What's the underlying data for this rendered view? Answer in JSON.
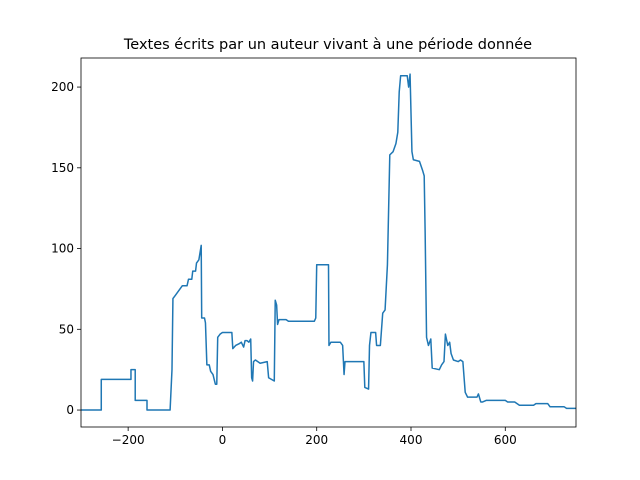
{
  "chart_data": {
    "type": "line",
    "title": "Textes écrits par un auteur vivant à une période donnée",
    "x": [
      -300,
      -257,
      -257,
      -194,
      -194,
      -185,
      -185,
      -160,
      -160,
      -111,
      -107,
      -105,
      -100,
      -95,
      -85,
      -75,
      -72,
      -65,
      -63,
      -57,
      -55,
      -50,
      -45,
      -44,
      -38,
      -36,
      -33,
      -28,
      -25,
      -20,
      -15,
      -12,
      -10,
      -5,
      0,
      20,
      22,
      28,
      35,
      40,
      45,
      48,
      52,
      56,
      60,
      62,
      64,
      66,
      70,
      80,
      95,
      98,
      110,
      112,
      115,
      117,
      120,
      135,
      140,
      195,
      198,
      200,
      225,
      226,
      230,
      250,
      255,
      258,
      260,
      300,
      302,
      310,
      312,
      315,
      325,
      327,
      335,
      340,
      345,
      350,
      355,
      362,
      368,
      372,
      375,
      378,
      392,
      395,
      398,
      402,
      405,
      418,
      425,
      428,
      430,
      433,
      437,
      442,
      445,
      460,
      465,
      470,
      473,
      478,
      482,
      485,
      490,
      500,
      505,
      510,
      515,
      520,
      540,
      543,
      548,
      552,
      560,
      600,
      605,
      620,
      625,
      630,
      660,
      665,
      690,
      695,
      725,
      730,
      750
    ],
    "series": [
      {
        "color": "#1f77b4",
        "values": [
          0,
          0,
          19,
          19,
          25,
          25,
          6,
          6,
          0,
          0,
          25,
          69,
          71,
          73,
          77,
          77,
          81,
          81,
          86,
          86,
          91,
          93,
          102,
          57,
          57,
          54,
          28,
          28,
          24,
          22,
          16,
          16,
          45,
          47,
          48,
          48,
          38,
          40,
          41,
          42,
          39,
          43,
          43,
          42,
          44,
          20,
          18,
          30,
          31,
          29,
          30,
          20,
          18,
          68,
          65,
          53,
          56,
          56,
          55,
          55,
          57,
          90,
          90,
          40,
          42,
          42,
          40,
          22,
          30,
          30,
          14,
          13,
          40,
          48,
          48,
          40,
          40,
          60,
          62,
          90,
          158,
          160,
          165,
          172,
          197,
          207,
          207,
          200,
          208,
          160,
          155,
          154,
          148,
          145,
          110,
          45,
          40,
          44,
          26,
          25,
          28,
          30,
          47,
          40,
          42,
          35,
          31,
          30,
          31,
          30,
          11,
          8,
          8,
          10,
          5,
          5,
          6,
          6,
          5,
          5,
          4,
          3,
          3,
          4,
          4,
          2,
          2,
          1,
          1
        ]
      }
    ],
    "xlim": [
      -300,
      750
    ],
    "ylim": [
      -10.5,
      218
    ],
    "xticks": [
      {
        "value": -200,
        "label": "−200"
      },
      0,
      200,
      400,
      600
    ],
    "yticks": [
      0,
      50,
      100,
      150,
      200
    ]
  }
}
